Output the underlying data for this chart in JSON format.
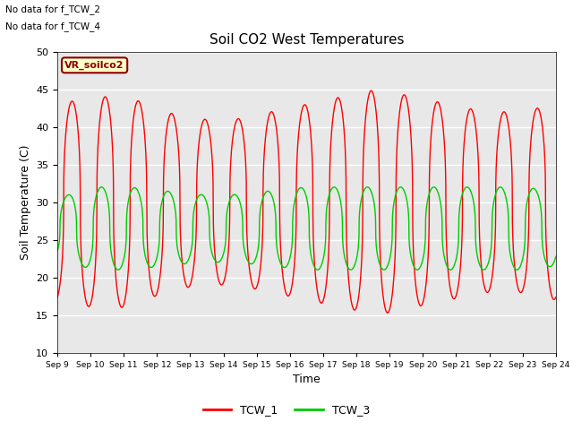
{
  "title": "Soil CO2 West Temperatures",
  "xlabel": "Time",
  "ylabel": "Soil Temperature (C)",
  "ylim": [
    10,
    50
  ],
  "xlim_days": [
    9,
    24
  ],
  "annotations": [
    "No data for f_TCW_2",
    "No data for f_TCW_4"
  ],
  "vr_label": "VR_soilco2",
  "tcw1_color": "#ff0000",
  "tcw3_color": "#00cc00",
  "bg_color": "#e8e8e8",
  "fig_bg": "#ffffff",
  "legend_entries": [
    "TCW_1",
    "TCW_3"
  ],
  "tcw1_base": 30,
  "tcw3_base": 26.5,
  "tcw1_amp_values": [
    13,
    14,
    14,
    12,
    11,
    11,
    12,
    13,
    14,
    15,
    14,
    13,
    12,
    12,
    13
  ],
  "tcw3_amp_values": [
    4,
    5.5,
    5.5,
    5,
    4.5,
    4.5,
    5,
    5.5,
    5.5,
    5.5,
    5.5,
    5.5,
    5.5,
    5.5,
    5
  ],
  "period_days": 1.0,
  "tcw1_phase": -1.2,
  "tcw3_phase": -0.5,
  "sharpness": 2.5
}
